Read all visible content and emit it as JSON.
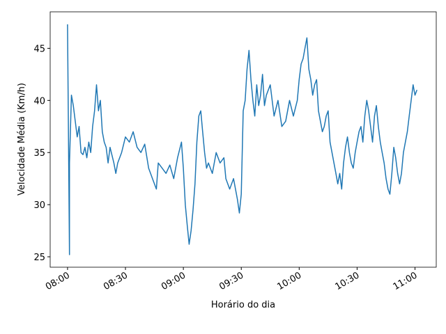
{
  "chart_data": {
    "type": "line",
    "x_label": "Horário do dia",
    "y_label": "Velocidade Média (Km/h)",
    "x": [
      "08:00",
      "08:01",
      "08:01",
      "08:02",
      "08:03",
      "08:04",
      "08:05",
      "08:06",
      "08:07",
      "08:08",
      "08:09",
      "08:10",
      "08:11",
      "08:12",
      "08:13",
      "08:14",
      "08:15",
      "08:16",
      "08:17",
      "08:18",
      "08:19",
      "08:20",
      "08:21",
      "08:22",
      "08:24",
      "08:25",
      "08:26",
      "08:28",
      "08:30",
      "08:32",
      "08:34",
      "08:36",
      "08:38",
      "08:40",
      "08:42",
      "08:44",
      "08:46",
      "08:47",
      "08:49",
      "08:51",
      "08:53",
      "08:55",
      "08:57",
      "08:59",
      "09:00",
      "09:01",
      "09:02",
      "09:03",
      "09:04",
      "09:05",
      "09:06",
      "09:07",
      "09:08",
      "09:09",
      "09:10",
      "09:11",
      "09:12",
      "09:13",
      "09:15",
      "09:17",
      "09:19",
      "09:21",
      "09:22",
      "09:24",
      "09:26",
      "09:28",
      "09:29",
      "09:30",
      "09:31",
      "09:32",
      "09:33",
      "09:34",
      "09:35",
      "09:36",
      "09:37",
      "09:38",
      "09:39",
      "09:40",
      "09:41",
      "09:42",
      "09:43",
      "09:45",
      "09:47",
      "09:49",
      "09:51",
      "09:53",
      "09:55",
      "09:57",
      "09:59",
      "10:00",
      "10:01",
      "10:02",
      "10:03",
      "10:04",
      "10:05",
      "10:06",
      "10:07",
      "10:08",
      "10:09",
      "10:10",
      "10:11",
      "10:12",
      "10:13",
      "10:14",
      "10:15",
      "10:16",
      "10:17",
      "10:18",
      "10:19",
      "10:20",
      "10:21",
      "10:22",
      "10:23",
      "10:24",
      "10:25",
      "10:26",
      "10:27",
      "10:28",
      "10:29",
      "10:30",
      "10:31",
      "10:32",
      "10:33",
      "10:34",
      "10:35",
      "10:36",
      "10:37",
      "10:38",
      "10:39",
      "10:40",
      "10:41",
      "10:42",
      "10:43",
      "10:44",
      "10:45",
      "10:46",
      "10:47",
      "10:48",
      "10:49",
      "10:50",
      "10:51",
      "10:52",
      "10:53",
      "10:54",
      "10:55",
      "10:56",
      "10:57",
      "10:58",
      "10:59",
      "11:00",
      "11:01"
    ],
    "series": [
      {
        "color": "#1f77b4",
        "values": [
          47.3,
          25.2,
          34,
          40.5,
          39.5,
          38,
          36.5,
          37.5,
          35,
          34.8,
          35.5,
          34.5,
          36,
          35,
          37.5,
          39,
          41.5,
          39,
          40,
          37,
          36,
          35.5,
          34,
          35.5,
          34,
          33,
          34,
          35,
          36.5,
          36,
          37,
          35.5,
          35,
          35.8,
          33.5,
          32.5,
          31.5,
          34,
          33.5,
          33,
          33.8,
          32.5,
          34.5,
          36,
          33.5,
          30,
          28,
          26.2,
          27.5,
          29.5,
          32,
          36,
          38.5,
          39,
          37,
          35,
          33.5,
          34,
          33,
          35,
          34,
          34.5,
          32.5,
          31.5,
          32.5,
          30.5,
          29.2,
          31,
          39,
          40,
          43,
          44.8,
          42,
          40,
          38.5,
          41.5,
          39.5,
          40.5,
          42.5,
          39.5,
          40.5,
          41.5,
          38.5,
          40,
          37.5,
          38,
          40,
          38.5,
          40,
          42,
          43.5,
          44,
          45,
          46,
          43,
          42,
          40.5,
          41.5,
          42,
          39,
          38,
          37,
          37.5,
          38.5,
          39,
          36,
          35,
          34,
          33,
          32,
          33,
          31.5,
          34,
          35.5,
          36.5,
          35,
          34,
          33.5,
          35,
          36,
          37,
          37.5,
          36,
          38.5,
          40,
          39,
          37.5,
          36,
          38.5,
          39.5,
          37.5,
          36,
          35,
          34,
          32.5,
          31.5,
          31,
          33,
          35.5,
          34.5,
          33,
          32,
          33,
          35,
          36,
          37,
          38.5,
          40,
          41.5,
          40.5,
          41
        ]
      }
    ],
    "xlim": [
      "07:51",
      "11:11"
    ],
    "xticks": [
      "08:00",
      "08:30",
      "09:00",
      "09:30",
      "10:00",
      "10:30",
      "11:00"
    ],
    "ylim": [
      24,
      48.5
    ],
    "yticks": [
      25,
      30,
      35,
      40,
      45
    ]
  }
}
